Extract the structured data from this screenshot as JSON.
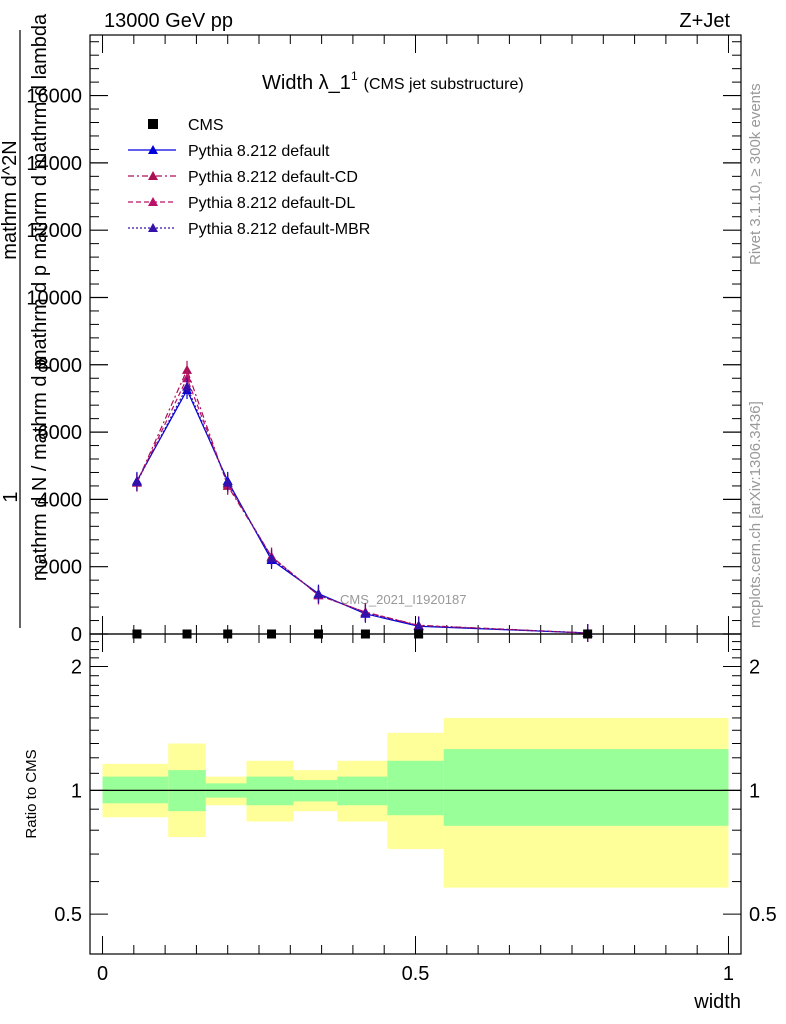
{
  "header": {
    "left": "13000 GeV pp",
    "right": "Z+Jet"
  },
  "title_main": "Width λ_1",
  "title_sup": "1",
  "title_sub": "(CMS jet substructure)",
  "side_right_top": "Rivet 3.1.10, ≥ 300k events",
  "side_right_bottom": "mcplots.cern.ch [arXiv:1306.3436]",
  "watermark": "CMS_2021_I1920187",
  "ylabel_main": {
    "one": "1",
    "numer": "mathrm d N",
    "denom": "mathrm d p",
    "full_numer": "mathrm d^2N",
    "full_denom": "mathrm d p mathrm d mathrm d lambda",
    "stack": "mathrm d N / mathrm d p"
  },
  "ylabel_ratio": "Ratio to CMS",
  "xlabel": "width",
  "colors": {
    "ratio_band_inner": "#99ff99",
    "ratio_band_outer": "#ffff99",
    "default": "#0000dd",
    "cd": "#aa1155",
    "dl": "#bb1166",
    "mbr": "#3311aa"
  },
  "chart_data": {
    "type": "line",
    "x_edges": [
      0.0,
      0.105,
      0.165,
      0.23,
      0.305,
      0.375,
      0.455,
      0.545,
      1.0
    ],
    "x": [
      0.055,
      0.135,
      0.2,
      0.27,
      0.345,
      0.42,
      0.505,
      0.775
    ],
    "x_ticks": [
      "0",
      "0.5",
      "1"
    ],
    "y_ticks": [
      "0",
      "2000",
      "4000",
      "6000",
      "8000",
      "10000",
      "12000",
      "14000",
      "16000"
    ],
    "ylim": [
      0,
      17800
    ],
    "xlim": [
      -0.02,
      1.02
    ],
    "legend_placement": "top-left",
    "legend": [
      {
        "label": "CMS",
        "key": "cms"
      },
      {
        "label": "Pythia 8.212 default",
        "key": "default"
      },
      {
        "label": "Pythia 8.212 default-CD",
        "key": "cd"
      },
      {
        "label": "Pythia 8.212 default-DL",
        "key": "dl"
      },
      {
        "label": "Pythia 8.212 default-MBR",
        "key": "mbr"
      }
    ],
    "series": [
      {
        "name": "CMS",
        "key": "cms",
        "values": [
          0,
          0,
          0,
          0,
          0,
          0,
          0,
          0
        ]
      },
      {
        "name": "Pythia 8.212 default",
        "key": "default",
        "values": [
          4550,
          7250,
          4550,
          2200,
          1200,
          600,
          230,
          30
        ]
      },
      {
        "name": "Pythia 8.212 default-CD",
        "key": "cd",
        "values": [
          4500,
          7850,
          4400,
          2300,
          1150,
          650,
          260,
          30
        ]
      },
      {
        "name": "Pythia 8.212 default-DL",
        "key": "dl",
        "values": [
          4500,
          7600,
          4450,
          2300,
          1150,
          650,
          250,
          30
        ]
      },
      {
        "name": "Pythia 8.212 default-MBR",
        "key": "mbr",
        "values": [
          4520,
          7350,
          4500,
          2250,
          1180,
          620,
          240,
          30
        ]
      }
    ],
    "ratio": {
      "ylim_log": [
        0.4,
        2.4
      ],
      "y_ticks": [
        "0.5",
        "1",
        "2"
      ],
      "inner": [
        [
          0.93,
          1.08
        ],
        [
          0.89,
          1.12
        ],
        [
          0.96,
          1.04
        ],
        [
          0.92,
          1.08
        ],
        [
          0.94,
          1.06
        ],
        [
          0.92,
          1.08
        ],
        [
          0.87,
          1.18
        ],
        [
          0.82,
          1.26
        ]
      ],
      "outer": [
        [
          0.86,
          1.16
        ],
        [
          0.77,
          1.3
        ],
        [
          0.92,
          1.08
        ],
        [
          0.84,
          1.18
        ],
        [
          0.89,
          1.12
        ],
        [
          0.84,
          1.18
        ],
        [
          0.72,
          1.38
        ],
        [
          0.58,
          1.5
        ]
      ]
    }
  }
}
